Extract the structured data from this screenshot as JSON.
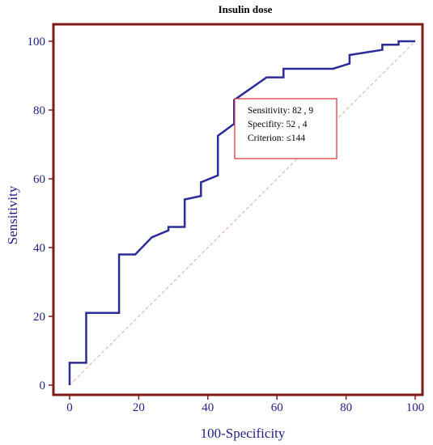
{
  "chart_data": {
    "type": "line",
    "title": "Insulin dose",
    "xlabel": "100-Specificity",
    "ylabel": "Sensitivity",
    "xlim": [
      0,
      100
    ],
    "ylim": [
      0,
      100
    ],
    "x_ticks": [
      "0",
      "20",
      "40",
      "60",
      "80",
      "100"
    ],
    "y_ticks": [
      "0",
      "20",
      "40",
      "60",
      "80",
      "100"
    ],
    "grid": false,
    "colors": {
      "frame": "#7f1a1a",
      "series": "#2b2b9a",
      "diagonal": "#e8b4b4",
      "tick_label": "#1f1f8a",
      "annotation_border": "#d93030"
    },
    "series": [
      {
        "points": [
          [
            0,
            0
          ],
          [
            0,
            6.5
          ],
          [
            4.8,
            6.5
          ],
          [
            4.8,
            21
          ],
          [
            14.3,
            21
          ],
          [
            14.3,
            38
          ],
          [
            19,
            38
          ],
          [
            23.8,
            43
          ],
          [
            28.6,
            45
          ],
          [
            28.6,
            46
          ],
          [
            33.3,
            46
          ],
          [
            33.3,
            54
          ],
          [
            38,
            55
          ],
          [
            38,
            59
          ],
          [
            42.9,
            61
          ],
          [
            42.9,
            72.5
          ],
          [
            47.6,
            76
          ],
          [
            47.6,
            82.9
          ],
          [
            57,
            89.5
          ],
          [
            61.9,
            89.5
          ],
          [
            61.9,
            92
          ],
          [
            76.2,
            92
          ],
          [
            81,
            93.5
          ],
          [
            81,
            96
          ],
          [
            90.5,
            97.5
          ],
          [
            90.5,
            99
          ],
          [
            95.2,
            99
          ],
          [
            95.2,
            100
          ],
          [
            100,
            100
          ]
        ]
      }
    ],
    "reference_line": [
      [
        0,
        0
      ],
      [
        100,
        100
      ]
    ],
    "annotation": {
      "lines": [
        "Sensitivity: 82 , 9",
        "Specifity: 52 , 4",
        "Criterion: ≤144"
      ]
    }
  }
}
